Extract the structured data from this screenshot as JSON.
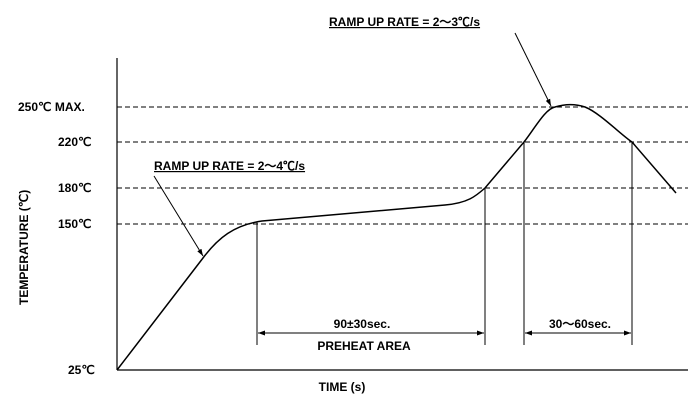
{
  "axes": {
    "y_title": "TEMPERATURE (℃)",
    "x_title": "TIME (s)"
  },
  "y_ticks": [
    {
      "label": "250℃ MAX.",
      "value": 250
    },
    {
      "label": "220℃",
      "value": 220
    },
    {
      "label": "180℃",
      "value": 180
    },
    {
      "label": "150℃",
      "value": 150
    },
    {
      "label": "25℃",
      "value": 25
    }
  ],
  "annotations": {
    "ramp_up_peak": "RAMP UP RATE = 2～3℃/s",
    "ramp_up_initial": "RAMP UP RATE = 2～4℃/s"
  },
  "dimensions": {
    "preheat_time": "90±30sec.",
    "preheat_label": "PREHEAT AREA",
    "reflow_time": "30～60sec."
  },
  "colors": {
    "line": "#000000",
    "background": "#ffffff"
  }
}
